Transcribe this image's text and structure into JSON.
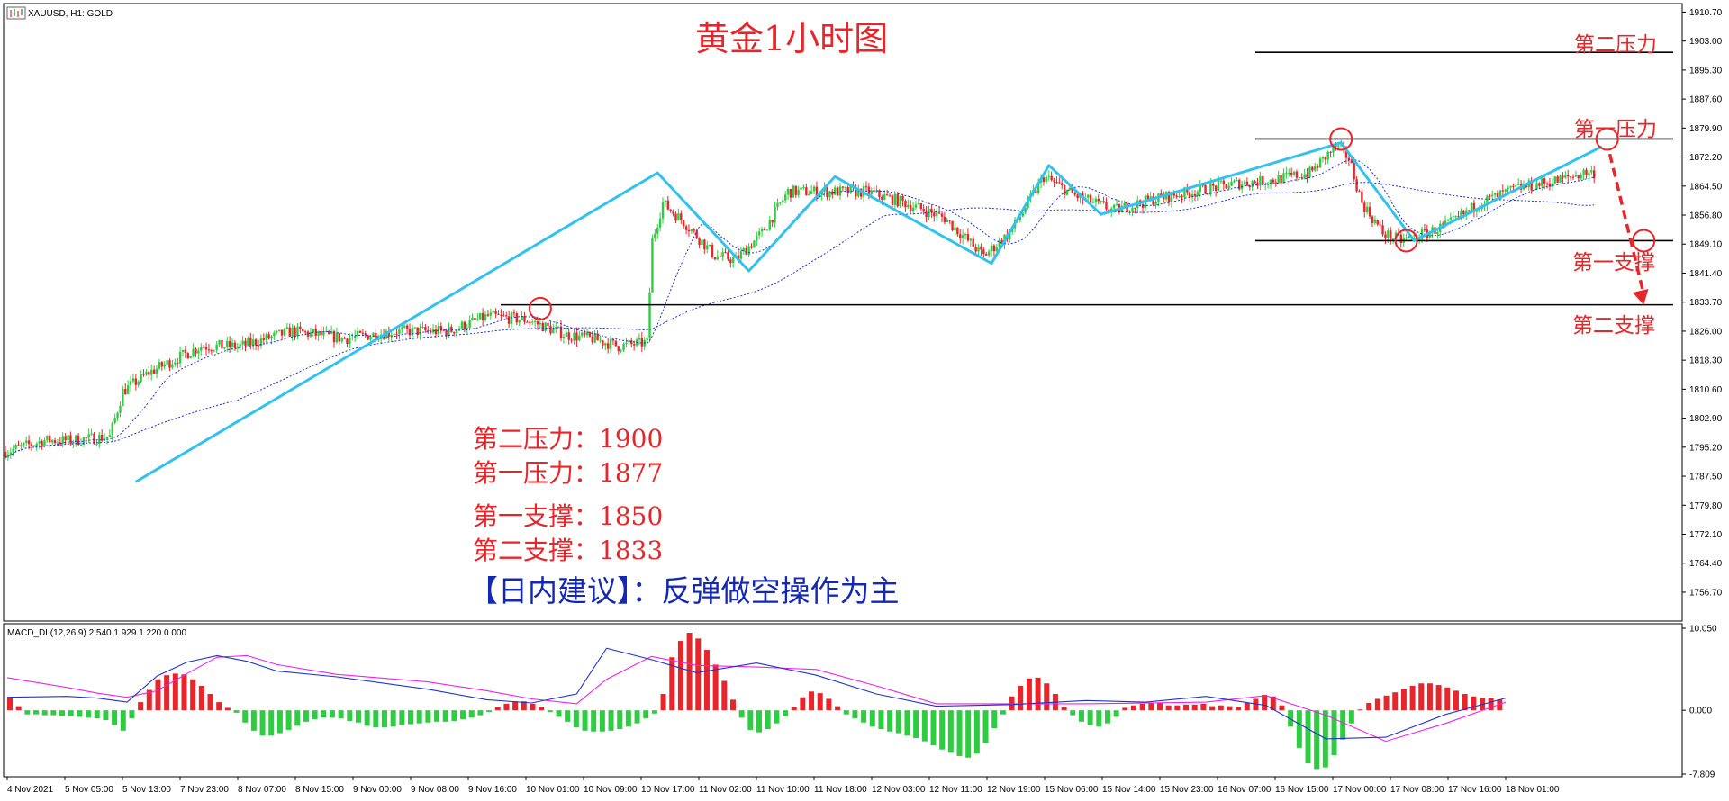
{
  "symbol_label": "XAUUSD, H1:  GOLD",
  "chart_title": "黄金1小时图",
  "level_labels": {
    "resistance2": "第二压力",
    "resistance1": "第一压力",
    "support1": "第一支撑",
    "support2": "第二支撑"
  },
  "levels_text": {
    "r2": "第二压力：1900",
    "r1": "第一压力：1877",
    "s1": "第一支撑：1850",
    "s2": "第二支撑：1833"
  },
  "advice": "【日内建议】：反弹做空操作为主",
  "macd_label": "MACD_DL(12,26,9) 2.540 1.929 1.220 0.000",
  "colors": {
    "up_candle": "#2ecc40",
    "down_candle": "#e8252a",
    "trend_line": "#33c1ee",
    "forecast": "#e8252a",
    "ma": "#2233cc",
    "macd_signal": "#ee22ee",
    "text_red": "#e8252a",
    "text_blue": "#1428b4"
  },
  "chart_data": {
    "type": "candlestick",
    "title": "黄金1小时图",
    "price_axis": {
      "min": 1750,
      "max": 1912,
      "ticks": [
        "1910.70",
        "1903.00",
        "1895.30",
        "1887.60",
        "1879.90",
        "1872.20",
        "1864.50",
        "1856.80",
        "1849.10",
        "1841.40",
        "1833.70",
        "1826.00",
        "1818.30",
        "1810.60",
        "1802.90",
        "1795.20",
        "1787.50",
        "1779.80",
        "1772.10",
        "1764.40",
        "1756.70"
      ]
    },
    "time_axis": {
      "labels": [
        "4 Nov 2021",
        "5 Nov 05:00",
        "5 Nov 13:00",
        "7 Nov 23:00",
        "8 Nov 07:00",
        "8 Nov 15:00",
        "9 Nov 00:00",
        "9 Nov 08:00",
        "9 Nov 16:00",
        "10 Nov 01:00",
        "10 Nov 09:00",
        "10 Nov 17:00",
        "11 Nov 02:00",
        "11 Nov 10:00",
        "11 Nov 18:00",
        "12 Nov 03:00",
        "12 Nov 11:00",
        "12 Nov 19:00",
        "15 Nov 06:00",
        "15 Nov 14:00",
        "15 Nov 23:00",
        "16 Nov 07:00",
        "16 Nov 15:00",
        "17 Nov 00:00",
        "17 Nov 08:00",
        "17 Nov 16:00",
        "18 Nov 01:00"
      ]
    },
    "close_path": [
      {
        "x": 0,
        "y": 1794
      },
      {
        "x": 15,
        "y": 1797
      },
      {
        "x": 25,
        "y": 1797
      },
      {
        "x": 40,
        "y": 1798
      },
      {
        "x": 45,
        "y": 1810
      },
      {
        "x": 55,
        "y": 1815
      },
      {
        "x": 75,
        "y": 1822
      },
      {
        "x": 90,
        "y": 1822
      },
      {
        "x": 110,
        "y": 1826
      },
      {
        "x": 130,
        "y": 1824
      },
      {
        "x": 150,
        "y": 1826
      },
      {
        "x": 170,
        "y": 1826
      },
      {
        "x": 185,
        "y": 1830
      },
      {
        "x": 200,
        "y": 1829
      },
      {
        "x": 215,
        "y": 1825
      },
      {
        "x": 225,
        "y": 1824
      },
      {
        "x": 235,
        "y": 1822
      },
      {
        "x": 246,
        "y": 1823
      },
      {
        "x": 248,
        "y": 1850
      },
      {
        "x": 252,
        "y": 1860
      },
      {
        "x": 260,
        "y": 1855
      },
      {
        "x": 272,
        "y": 1846
      },
      {
        "x": 280,
        "y": 1845
      },
      {
        "x": 290,
        "y": 1852
      },
      {
        "x": 300,
        "y": 1863
      },
      {
        "x": 315,
        "y": 1863
      },
      {
        "x": 330,
        "y": 1863
      },
      {
        "x": 345,
        "y": 1860
      },
      {
        "x": 360,
        "y": 1856
      },
      {
        "x": 375,
        "y": 1846
      },
      {
        "x": 385,
        "y": 1852
      },
      {
        "x": 398,
        "y": 1867
      },
      {
        "x": 410,
        "y": 1862
      },
      {
        "x": 425,
        "y": 1858
      },
      {
        "x": 440,
        "y": 1861
      },
      {
        "x": 455,
        "y": 1863
      },
      {
        "x": 470,
        "y": 1865
      },
      {
        "x": 485,
        "y": 1866
      },
      {
        "x": 500,
        "y": 1868
      },
      {
        "x": 510,
        "y": 1875
      },
      {
        "x": 515,
        "y": 1872
      },
      {
        "x": 520,
        "y": 1860
      },
      {
        "x": 528,
        "y": 1852
      },
      {
        "x": 535,
        "y": 1850
      },
      {
        "x": 545,
        "y": 1852
      },
      {
        "x": 555,
        "y": 1855
      },
      {
        "x": 565,
        "y": 1860
      },
      {
        "x": 580,
        "y": 1864
      },
      {
        "x": 595,
        "y": 1866
      },
      {
        "x": 605,
        "y": 1868
      }
    ],
    "zigzag": [
      {
        "x": 50,
        "y": 1786
      },
      {
        "x": 250,
        "y": 1868
      },
      {
        "x": 285,
        "y": 1842
      },
      {
        "x": 318,
        "y": 1867
      },
      {
        "x": 378,
        "y": 1844
      },
      {
        "x": 400,
        "y": 1870
      },
      {
        "x": 420,
        "y": 1857
      },
      {
        "x": 512,
        "y": 1876
      },
      {
        "x": 540,
        "y": 1850
      },
      {
        "x": 612,
        "y": 1875
      }
    ],
    "forecast_arrow": [
      {
        "x": 615,
        "y": 1873
      },
      {
        "x": 628,
        "y": 1833
      }
    ],
    "resistance_lines": [
      1900,
      1877
    ],
    "support_lines": [
      1850,
      1833
    ],
    "circled_points": [
      {
        "x": 205,
        "y": 1832
      },
      {
        "x": 512,
        "y": 1877
      },
      {
        "x": 537,
        "y": 1850
      },
      {
        "x": 614,
        "y": 1877
      },
      {
        "x": 628,
        "y": 1850
      }
    ],
    "macd": {
      "ylim": [
        -7.809,
        10.05
      ],
      "ticks": [
        "10.050",
        "0.000",
        "-7.809"
      ],
      "histogram": [
        1.5,
        0.5,
        -0.5,
        -0.5,
        -0.6,
        -0.6,
        -0.7,
        -0.7,
        -0.8,
        -0.9,
        -1,
        -1.2,
        -1.8,
        -2.5,
        -1,
        1,
        2.5,
        3.8,
        4.3,
        4.5,
        4.4,
        3.8,
        3.0,
        2.0,
        1.0,
        0.3,
        -0.3,
        -1.5,
        -2.5,
        -3.1,
        -3.1,
        -2.8,
        -2.4,
        -1.9,
        -1.4,
        -1.1,
        -0.9,
        -0.9,
        -1.0,
        -1.3,
        -1.5,
        -1.9,
        -2.1,
        -2.1,
        -2.0,
        -1.8,
        -1.7,
        -1.6,
        -1.5,
        -1.4,
        -1.4,
        -1.3,
        -1.1,
        -0.9,
        -0.6,
        -0.2,
        0.4,
        0.8,
        1.1,
        1.1,
        0.8,
        0.4,
        -0.2,
        -0.8,
        -1.4,
        -2.1,
        -2.5,
        -2.6,
        -2.6,
        -2.5,
        -2.3,
        -2.0,
        -1.6,
        -1.0,
        -0.4,
        2.0,
        6.5,
        8.5,
        9.5,
        8.8,
        7.4,
        5.6,
        3.6,
        1.3,
        -0.9,
        -2.4,
        -2.7,
        -2.3,
        -1.6,
        -0.7,
        0.4,
        1.6,
        2.3,
        2.1,
        1.4,
        0.5,
        -0.5,
        -1.0,
        -1.5,
        -2.0,
        -2.3,
        -2.6,
        -2.8,
        -3.1,
        -3.4,
        -3.8,
        -4.3,
        -4.8,
        -5.2,
        -5.6,
        -5.8,
        -5.3,
        -4.0,
        -2.2,
        -0.5,
        1.7,
        3.0,
        3.9,
        4.0,
        3.3,
        2.0,
        0.4,
        -0.6,
        -1.4,
        -1.8,
        -2.0,
        -1.6,
        -0.8,
        0.3,
        0.6,
        0.8,
        0.9,
        0.9,
        0.6,
        0.6,
        0.7,
        0.7,
        0.8,
        0.5,
        0.6,
        0.5,
        0.4,
        0.9,
        1.4,
        1.9,
        1.7,
        0.6,
        -2.0,
        -4.6,
        -6.5,
        -7.2,
        -7.0,
        -5.5,
        -3.6,
        -1.6,
        0.1,
        0.9,
        1.4,
        1.8,
        2.2,
        2.6,
        3.0,
        3.3,
        3.3,
        3.1,
        2.8,
        2.4,
        2.0,
        1.7,
        1.5,
        1.5,
        1.3
      ],
      "macd_line": [
        {
          "x": 0,
          "y": 1.6
        },
        {
          "x": 0.04,
          "y": 1.7
        },
        {
          "x": 0.06,
          "y": 1.5
        },
        {
          "x": 0.08,
          "y": 1.0
        },
        {
          "x": 0.1,
          "y": 4.2
        },
        {
          "x": 0.12,
          "y": 5.9
        },
        {
          "x": 0.14,
          "y": 6.7
        },
        {
          "x": 0.16,
          "y": 6.0
        },
        {
          "x": 0.18,
          "y": 4.8
        },
        {
          "x": 0.22,
          "y": 4.1
        },
        {
          "x": 0.28,
          "y": 2.6
        },
        {
          "x": 0.32,
          "y": 1.3
        },
        {
          "x": 0.35,
          "y": 0.9
        },
        {
          "x": 0.38,
          "y": 2.0
        },
        {
          "x": 0.4,
          "y": 7.6
        },
        {
          "x": 0.43,
          "y": 6.2
        },
        {
          "x": 0.46,
          "y": 4.6
        },
        {
          "x": 0.5,
          "y": 5.8
        },
        {
          "x": 0.54,
          "y": 4.3
        },
        {
          "x": 0.58,
          "y": 2.0
        },
        {
          "x": 0.62,
          "y": 0.5
        },
        {
          "x": 0.67,
          "y": 0.7
        },
        {
          "x": 0.72,
          "y": 1.2
        },
        {
          "x": 0.76,
          "y": 1.0
        },
        {
          "x": 0.8,
          "y": 1.7
        },
        {
          "x": 0.84,
          "y": 0.6
        },
        {
          "x": 0.88,
          "y": -3.5
        },
        {
          "x": 0.92,
          "y": -3.3
        },
        {
          "x": 0.96,
          "y": -0.5
        },
        {
          "x": 1,
          "y": 1.5
        }
      ],
      "signal_line": [
        {
          "x": 0,
          "y": 4.0
        },
        {
          "x": 0.04,
          "y": 2.8
        },
        {
          "x": 0.06,
          "y": 2.1
        },
        {
          "x": 0.08,
          "y": 1.6
        },
        {
          "x": 0.1,
          "y": 2.4
        },
        {
          "x": 0.12,
          "y": 4.5
        },
        {
          "x": 0.14,
          "y": 6.5
        },
        {
          "x": 0.16,
          "y": 6.7
        },
        {
          "x": 0.18,
          "y": 5.6
        },
        {
          "x": 0.22,
          "y": 4.4
        },
        {
          "x": 0.28,
          "y": 3.5
        },
        {
          "x": 0.32,
          "y": 2.4
        },
        {
          "x": 0.35,
          "y": 1.4
        },
        {
          "x": 0.38,
          "y": 0.8
        },
        {
          "x": 0.4,
          "y": 3.8
        },
        {
          "x": 0.43,
          "y": 6.6
        },
        {
          "x": 0.46,
          "y": 5.5
        },
        {
          "x": 0.5,
          "y": 5.3
        },
        {
          "x": 0.54,
          "y": 5.0
        },
        {
          "x": 0.58,
          "y": 3.0
        },
        {
          "x": 0.62,
          "y": 0.8
        },
        {
          "x": 0.67,
          "y": 0.8
        },
        {
          "x": 0.72,
          "y": 0.8
        },
        {
          "x": 0.76,
          "y": 0.9
        },
        {
          "x": 0.8,
          "y": 1.0
        },
        {
          "x": 0.84,
          "y": 1.8
        },
        {
          "x": 0.88,
          "y": -0.6
        },
        {
          "x": 0.92,
          "y": -3.8
        },
        {
          "x": 0.96,
          "y": -1.6
        },
        {
          "x": 1,
          "y": 1.0
        }
      ]
    }
  }
}
